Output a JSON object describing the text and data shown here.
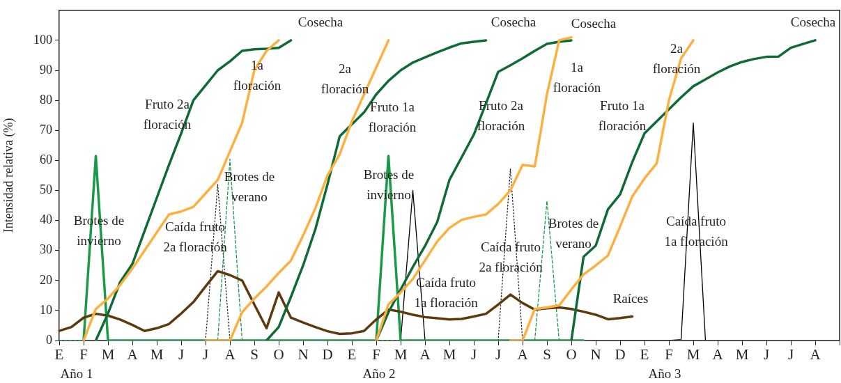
{
  "chart_data": {
    "type": "line",
    "ylabel": "Intensidad relativa (%)",
    "marker": "none",
    "categories": [
      "E",
      null,
      "F",
      null,
      "M",
      null,
      "A",
      null,
      "M",
      null,
      "J",
      null,
      "J",
      null,
      "A",
      null,
      "S",
      null,
      "O",
      null,
      "N",
      null,
      "D",
      null,
      "E",
      null,
      "F",
      null,
      "M",
      null,
      "A",
      null,
      "M",
      null,
      "J",
      null,
      "J",
      null,
      "A",
      null,
      "S",
      null,
      "O",
      null,
      "N",
      null,
      "D",
      null,
      "E",
      null,
      "F",
      null,
      "M",
      null,
      "A",
      null,
      "M",
      null,
      "J",
      null,
      "J",
      null,
      "A",
      null,
      null
    ],
    "ylim": [
      0,
      110
    ],
    "yticks": [
      0,
      10,
      20,
      30,
      40,
      50,
      60,
      70,
      80,
      90,
      100
    ],
    "series": [
      {
        "type": "line",
        "color": "#fbb040",
        "line_style": "solid",
        "values": [
          null,
          null,
          0,
          10.5,
          14,
          18.5,
          24,
          30,
          36,
          42,
          43,
          44.5,
          49,
          53.5,
          63,
          72.5,
          90,
          96.5,
          100,
          null,
          null,
          null,
          null,
          null,
          null,
          null,
          null,
          null,
          null,
          null,
          null,
          null,
          null,
          null,
          null,
          null,
          null,
          null,
          null,
          null,
          null,
          null,
          null,
          null,
          null,
          null,
          null,
          null,
          null,
          null,
          null,
          null,
          null,
          null,
          null,
          null,
          null,
          null,
          null,
          null,
          null,
          null,
          null,
          null,
          null
        ]
      },
      {
        "type": "line",
        "color": "#fbb040",
        "line_style": "solid",
        "values": [
          null,
          null,
          null,
          null,
          null,
          null,
          null,
          null,
          null,
          null,
          null,
          null,
          0,
          0,
          0,
          9.4,
          14,
          18,
          22.5,
          26.6,
          35,
          44,
          55,
          62,
          73,
          82,
          91,
          100,
          null,
          null,
          null,
          null,
          null,
          null,
          null,
          null,
          null,
          null,
          null,
          null,
          null,
          null,
          null,
          null,
          null,
          null,
          null,
          null,
          null,
          null,
          null,
          null,
          null,
          null,
          null,
          null,
          null,
          null,
          null,
          null,
          null,
          null,
          null,
          null,
          null
        ]
      },
      {
        "type": "line",
        "color": "#fbb040",
        "line_style": "solid",
        "values": [
          null,
          null,
          null,
          null,
          null,
          null,
          null,
          null,
          null,
          null,
          null,
          null,
          null,
          null,
          null,
          null,
          null,
          null,
          null,
          null,
          null,
          null,
          null,
          null,
          null,
          null,
          0,
          12,
          16,
          20.5,
          26.7,
          33,
          37.5,
          40.2,
          41.2,
          42,
          45.5,
          50,
          58.5,
          58,
          82,
          100,
          101,
          null,
          null,
          null,
          null,
          null,
          null,
          null,
          null,
          null,
          null,
          null,
          null,
          null,
          null,
          null,
          null,
          null,
          null,
          null,
          null,
          null,
          null
        ]
      },
      {
        "type": "line",
        "color": "#fbb040",
        "line_style": "solid",
        "values": [
          null,
          null,
          null,
          null,
          null,
          null,
          null,
          null,
          null,
          null,
          null,
          null,
          null,
          null,
          null,
          null,
          null,
          null,
          null,
          null,
          null,
          null,
          null,
          null,
          null,
          null,
          null,
          null,
          null,
          null,
          null,
          null,
          null,
          null,
          null,
          null,
          null,
          0,
          0,
          10.5,
          11,
          11.7,
          17,
          22,
          25,
          28.3,
          38,
          48,
          54,
          59,
          80,
          94,
          100,
          null,
          null,
          null,
          null,
          null,
          null,
          null,
          null,
          null,
          null,
          null,
          null
        ]
      },
      {
        "type": "line",
        "color": "#0e6b35",
        "line_style": "solid",
        "values": [
          null,
          null,
          null,
          0,
          9,
          19.5,
          25.5,
          36.5,
          47.5,
          58.5,
          69,
          80,
          85,
          90,
          93,
          96.5,
          97,
          97.2,
          97.5,
          100,
          null,
          null,
          null,
          null,
          null,
          null,
          null,
          null,
          null,
          null,
          null,
          null,
          null,
          null,
          null,
          null,
          null,
          null,
          null,
          null,
          null,
          null,
          null,
          null,
          null,
          null,
          null,
          null,
          null,
          null,
          null,
          null,
          null,
          null,
          null,
          null,
          null,
          null,
          null,
          null,
          null,
          null,
          null,
          null,
          null
        ]
      },
      {
        "type": "line",
        "color": "#0e6b35",
        "line_style": "solid",
        "values": [
          null,
          null,
          null,
          null,
          null,
          null,
          null,
          null,
          null,
          null,
          null,
          null,
          null,
          null,
          null,
          null,
          null,
          0,
          4.5,
          14.5,
          25,
          37,
          52,
          68,
          72,
          76,
          82,
          86.5,
          90,
          92.6,
          94.3,
          96,
          97.6,
          99,
          99.5,
          100,
          null,
          null,
          null,
          null,
          null,
          null,
          null,
          null,
          null,
          null,
          null,
          null,
          null,
          null,
          null,
          null,
          null,
          null,
          null,
          null,
          null,
          null,
          null,
          null,
          null,
          null,
          null,
          null,
          null
        ]
      },
      {
        "type": "line",
        "color": "#0e6b35",
        "line_style": "solid",
        "values": [
          null,
          null,
          null,
          null,
          null,
          null,
          null,
          null,
          null,
          null,
          null,
          null,
          null,
          null,
          null,
          null,
          null,
          null,
          null,
          null,
          null,
          null,
          null,
          null,
          null,
          null,
          0,
          9.4,
          17,
          24.5,
          31.5,
          39.5,
          53.5,
          61,
          68.6,
          79,
          89.5,
          91.7,
          94,
          96.5,
          98.8,
          99.5,
          100,
          null,
          null,
          null,
          null,
          null,
          null,
          null,
          null,
          null,
          null,
          null,
          null,
          null,
          null,
          null,
          null,
          null,
          null,
          null,
          null,
          null,
          null
        ]
      },
      {
        "type": "line",
        "color": "#0e6b35",
        "line_style": "solid",
        "values": [
          null,
          null,
          null,
          null,
          null,
          null,
          null,
          null,
          null,
          null,
          null,
          null,
          null,
          null,
          null,
          null,
          null,
          null,
          null,
          null,
          null,
          null,
          null,
          null,
          null,
          null,
          null,
          null,
          null,
          null,
          null,
          null,
          null,
          null,
          null,
          null,
          null,
          null,
          null,
          null,
          null,
          null,
          0,
          27.9,
          31.6,
          43.7,
          48.7,
          59.5,
          69,
          73,
          77,
          81,
          84.7,
          87,
          89.3,
          91.3,
          92.8,
          93.8,
          94.5,
          94.6,
          97.5,
          98.8,
          100,
          null,
          null
        ]
      },
      {
        "type": "line",
        "color": "#5c3a0e",
        "line_style": "solid",
        "values": [
          3.2,
          4.5,
          7.6,
          8.9,
          8.3,
          7,
          5.2,
          3.2,
          4.1,
          5.5,
          9,
          12.8,
          18,
          23.1,
          21.8,
          20,
          12,
          4.1,
          16,
          7.6,
          6,
          4.5,
          3.1,
          2.2,
          2.4,
          3.2,
          7,
          10.3,
          9.6,
          8.6,
          7.8,
          7.4,
          7.0,
          7.2,
          8,
          8.9,
          12,
          15.3,
          12.5,
          10.3,
          10.7,
          11,
          10.5,
          9.6,
          8.6,
          7.1,
          7.5,
          8.0,
          null,
          null,
          null,
          null,
          null,
          null,
          null,
          null,
          null,
          null,
          null,
          null,
          null,
          null,
          null,
          null,
          null
        ]
      },
      {
        "type": "line",
        "color": "#1a9a48",
        "line_style": "solid",
        "values": [
          null,
          null,
          0,
          61.5,
          0,
          0,
          0,
          0,
          0,
          0,
          0,
          0,
          0,
          0,
          0,
          0,
          0,
          0,
          0,
          0,
          0,
          0,
          0,
          0,
          0,
          0,
          0,
          61.5,
          0,
          0,
          0,
          0,
          0,
          0,
          0,
          0,
          0,
          0,
          0,
          0,
          0,
          0,
          0,
          0,
          null,
          null,
          null,
          null,
          null,
          null,
          null,
          null,
          null,
          null,
          null,
          null,
          null,
          null,
          null,
          null,
          null,
          null,
          null,
          null,
          null
        ]
      },
      {
        "type": "line",
        "color": "#1a9a48",
        "line_style": "dashed",
        "values": [
          0,
          0,
          0,
          null,
          null,
          null,
          null,
          null,
          null,
          null,
          null,
          null,
          null,
          0,
          60.4,
          0,
          null,
          null,
          null,
          null,
          null,
          null,
          null,
          null,
          null,
          null,
          0,
          0,
          0,
          null,
          null,
          null,
          null,
          null,
          null,
          null,
          null,
          null,
          null,
          0,
          46.5,
          0,
          null,
          null,
          null,
          null,
          null,
          null,
          null,
          null,
          null,
          null,
          null,
          null,
          null,
          null,
          null,
          null,
          null,
          null,
          null,
          null,
          null,
          null,
          null
        ]
      },
      {
        "type": "line",
        "color": "#231f20",
        "line_style": "dotted",
        "values": [
          null,
          null,
          null,
          null,
          null,
          null,
          null,
          null,
          null,
          null,
          null,
          null,
          0,
          52,
          0,
          null,
          null,
          null,
          null,
          null,
          null,
          null,
          null,
          null,
          null,
          null,
          null,
          null,
          null,
          null,
          null,
          null,
          null,
          null,
          null,
          null,
          0,
          57.2,
          0,
          null,
          null,
          null,
          null,
          null,
          null,
          null,
          null,
          null,
          null,
          null,
          null,
          null,
          null,
          null,
          null,
          null,
          null,
          null,
          null,
          null,
          null,
          null,
          null,
          null,
          null
        ]
      },
      {
        "type": "line",
        "color": "#000000",
        "line_style": "solid",
        "values": [
          null,
          null,
          null,
          null,
          null,
          null,
          null,
          null,
          null,
          null,
          null,
          null,
          null,
          null,
          null,
          null,
          null,
          null,
          null,
          null,
          null,
          null,
          null,
          null,
          null,
          null,
          null,
          null,
          0,
          50,
          0,
          null,
          null,
          null,
          null,
          null,
          null,
          null,
          null,
          null,
          null,
          null,
          null,
          null,
          null,
          null,
          0,
          0,
          0,
          0,
          0,
          0.3,
          72.5,
          0,
          null,
          null,
          null,
          null,
          null,
          null,
          null,
          null,
          null,
          null,
          null
        ]
      }
    ],
    "annotations": [
      "Cosecha",
      "Cosecha",
      "Cosecha",
      "Cosecha",
      "1a\nfloración",
      "Fruto 2a\nfloración",
      "Brotes de\ninvierno",
      "Caída fruto\n2a floración",
      "Brotes de\nverano",
      "2a\nfloración",
      "Fruto 1a\nfloración",
      "Brotes de\ninvierno",
      "Caída fruto\n1a floración",
      "Fruto 2a\nfloración",
      "Caída fruto\n2a floración",
      "Brotes de\nverano",
      "1a\nfloración",
      "Fruto 1a\nfloración",
      "2a\nfloración",
      "Caída fruto\n1a floración",
      "Raíces",
      "Año 1",
      "Año 2",
      "Año 3"
    ]
  }
}
